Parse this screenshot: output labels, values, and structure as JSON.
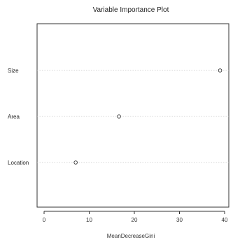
{
  "chart_data": {
    "type": "scatter",
    "title": "Variable Importance Plot",
    "xlabel": "MeanDecreaseGini",
    "ylabel": "",
    "xlim": [
      -1,
      40
    ],
    "xticks": [
      0,
      10,
      20,
      30,
      40
    ],
    "grid": "dotted horizontal guide lines at each variable",
    "categories": [
      "Size",
      "Area",
      "Location"
    ],
    "values": [
      39,
      16.6,
      7
    ]
  }
}
